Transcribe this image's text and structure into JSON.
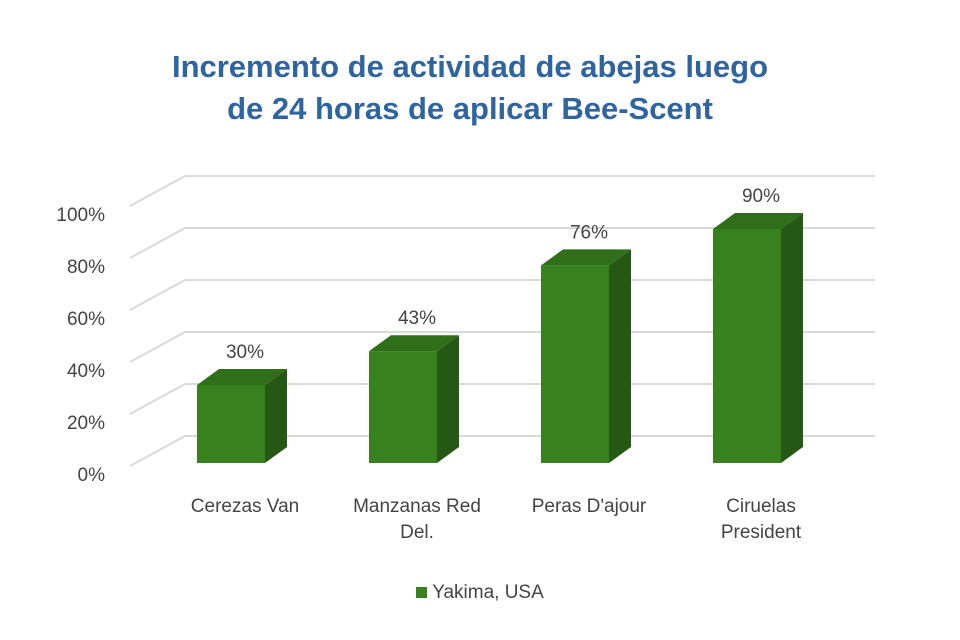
{
  "chart_data": {
    "type": "bar3d",
    "title": "Incremento de actividad de abejas luego de 24 horas de aplicar Bee-Scent",
    "categories": [
      "Cerezas Van",
      "Manzanas Red Del.",
      "Peras D'ajour",
      "Ciruelas President"
    ],
    "series": [
      {
        "name": "Yakima, USA",
        "color": "#37821f",
        "values": [
          30,
          43,
          76,
          90
        ],
        "value_labels": [
          "30%",
          "43%",
          "76%",
          "90%"
        ]
      }
    ],
    "ylim": [
      0,
      100
    ],
    "yticks": [
      {
        "value": 0,
        "label": "0%"
      },
      {
        "value": 20,
        "label": "20%"
      },
      {
        "value": 40,
        "label": "40%"
      },
      {
        "value": 60,
        "label": "60%"
      },
      {
        "value": 80,
        "label": "80%"
      },
      {
        "value": 100,
        "label": "100%"
      }
    ],
    "grid": true,
    "legend": "bottom"
  }
}
